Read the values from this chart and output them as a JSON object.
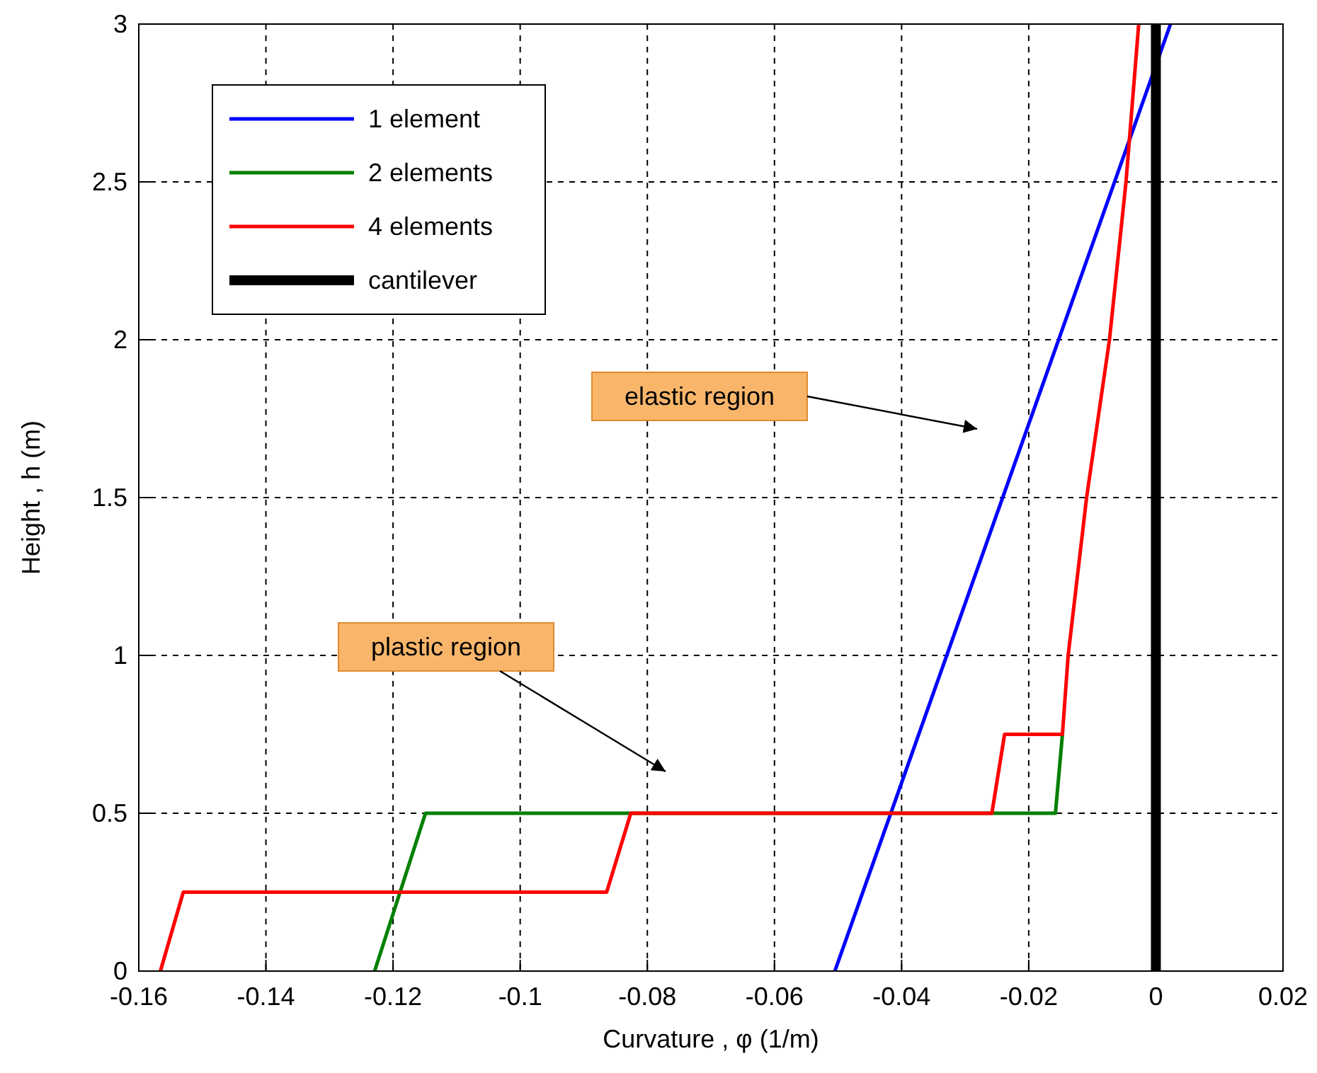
{
  "chart_data": {
    "type": "line",
    "xlabel": "Curvature , φ (1/m)",
    "ylabel": "Height , h (m)",
    "xlim": [
      -0.16,
      0.02
    ],
    "ylim": [
      0,
      3
    ],
    "xticks": [
      -0.16,
      -0.14,
      -0.12,
      -0.1,
      -0.08,
      -0.06,
      -0.04,
      -0.02,
      0,
      0.02
    ],
    "yticks": [
      0,
      0.5,
      1,
      1.5,
      2,
      2.5,
      3
    ],
    "grid": true,
    "legend": "top left",
    "marker": "none",
    "line_style": "solid",
    "series": [
      {
        "name": "1 element",
        "color": "#0000ff",
        "x": [
          -0.0505,
          0.0023
        ],
        "values": [
          0,
          3
        ]
      },
      {
        "name": "2 elements",
        "color": "#008000",
        "x": [
          -0.1229,
          -0.1149,
          -0.0158,
          -0.0147
        ],
        "values": [
          0,
          0.5,
          0.5,
          0.75
        ]
      },
      {
        "name": "4 elements",
        "color": "#ff0000",
        "x": [
          -0.1566,
          -0.153,
          -0.0864,
          -0.0826,
          -0.0258,
          -0.0238,
          -0.0147,
          -0.0138,
          -0.0109,
          -0.0073,
          -0.0047,
          -0.0027
        ],
        "values": [
          0,
          0.25,
          0.25,
          0.5,
          0.5,
          0.75,
          0.75,
          1,
          1.5,
          2,
          2.5,
          3
        ]
      },
      {
        "name": "cantilever",
        "color": "#000000",
        "x": [
          0,
          0
        ],
        "values": [
          0,
          3
        ]
      }
    ],
    "annotations": [
      "elastic region",
      "plastic region"
    ]
  }
}
